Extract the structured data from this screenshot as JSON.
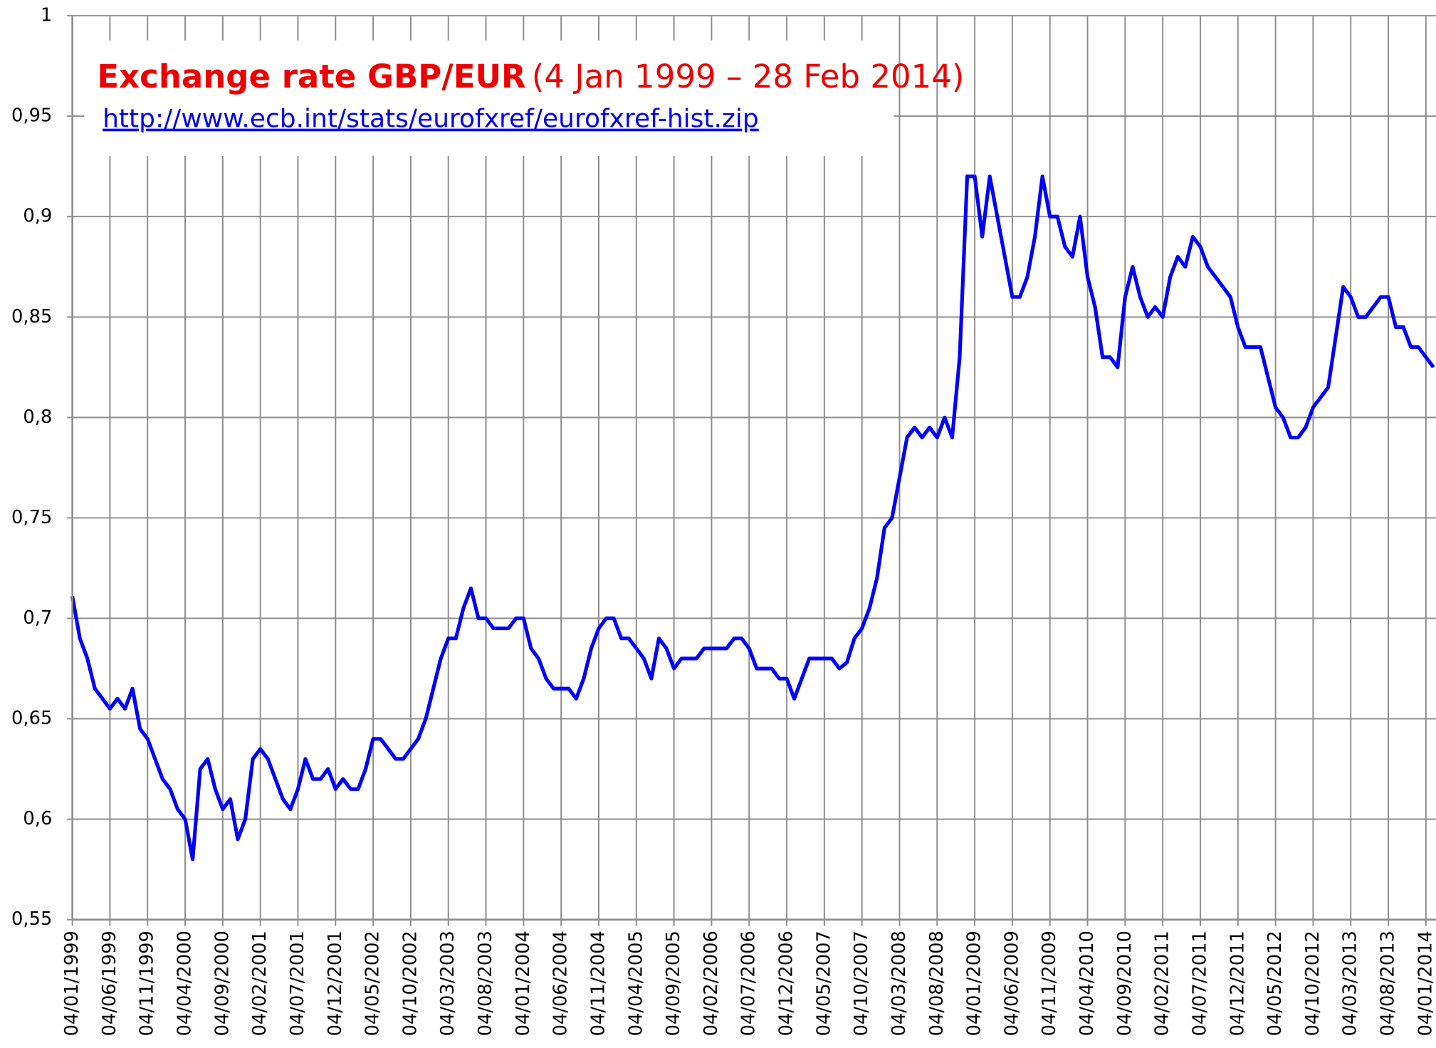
{
  "chart_data": {
    "type": "line",
    "title": "Exchange rate GBP/EUR",
    "subtitle": "(4 Jan 1999 – 28 Feb 2014)",
    "source": "http://www.ecb.int/stats/eurofxref/eurofxref-hist.zip",
    "categories": [
      "04/01/1999",
      null,
      null,
      null,
      null,
      "04/06/1999",
      null,
      null,
      null,
      null,
      "04/11/1999",
      null,
      null,
      null,
      null,
      "04/04/2000",
      null,
      null,
      null,
      null,
      "04/09/2000",
      null,
      null,
      null,
      null,
      "04/02/2001",
      null,
      null,
      null,
      null,
      "04/07/2001",
      null,
      null,
      null,
      null,
      "04/12/2001",
      null,
      null,
      null,
      null,
      "04/05/2002",
      null,
      null,
      null,
      null,
      "04/10/2002",
      null,
      null,
      null,
      null,
      "04/03/2003",
      null,
      null,
      null,
      null,
      "04/08/2003",
      null,
      null,
      null,
      null,
      "04/01/2004",
      null,
      null,
      null,
      null,
      "04/06/2004",
      null,
      null,
      null,
      null,
      "04/11/2004",
      null,
      null,
      null,
      null,
      "04/04/2005",
      null,
      null,
      null,
      null,
      "04/09/2005",
      null,
      null,
      null,
      null,
      "04/02/2006",
      null,
      null,
      null,
      null,
      "04/07/2006",
      null,
      null,
      null,
      null,
      "04/12/2006",
      null,
      null,
      null,
      null,
      "04/05/2007",
      null,
      null,
      null,
      null,
      "04/10/2007",
      null,
      null,
      null,
      null,
      "04/03/2008",
      null,
      null,
      null,
      null,
      "04/08/2008",
      null,
      null,
      null,
      null,
      "04/01/2009",
      null,
      null,
      null,
      null,
      "04/06/2009",
      null,
      null,
      null,
      null,
      "04/11/2009",
      null,
      null,
      null,
      null,
      "04/04/2010",
      null,
      null,
      null,
      null,
      "04/09/2010",
      null,
      null,
      null,
      null,
      "04/02/2011",
      null,
      null,
      null,
      null,
      "04/07/2011",
      null,
      null,
      null,
      null,
      "04/12/2011",
      null,
      null,
      null,
      null,
      "04/05/2012",
      null,
      null,
      null,
      null,
      "04/10/2012",
      null,
      null,
      null,
      null,
      "04/03/2013",
      null,
      null,
      null,
      null,
      "04/08/2013",
      null,
      null,
      null,
      null,
      "04/01/2014",
      null
    ],
    "series": [
      {
        "name": "GBP/EUR",
        "color": "#0000ff",
        "values": [
          0.711,
          0.69,
          0.68,
          0.665,
          0.66,
          0.655,
          0.66,
          0.655,
          0.665,
          0.645,
          0.64,
          0.63,
          0.62,
          0.615,
          0.605,
          0.6,
          0.58,
          0.625,
          0.63,
          0.615,
          0.605,
          0.61,
          0.59,
          0.6,
          0.63,
          0.635,
          0.63,
          0.62,
          0.61,
          0.605,
          0.615,
          0.63,
          0.62,
          0.62,
          0.625,
          0.615,
          0.62,
          0.615,
          0.615,
          0.625,
          0.64,
          0.64,
          0.635,
          0.63,
          0.63,
          0.635,
          0.64,
          0.65,
          0.665,
          0.68,
          0.69,
          0.69,
          0.705,
          0.715,
          0.7,
          0.7,
          0.695,
          0.695,
          0.695,
          0.7,
          0.7,
          0.685,
          0.68,
          0.67,
          0.665,
          0.665,
          0.665,
          0.66,
          0.67,
          0.685,
          0.695,
          0.7,
          0.7,
          0.69,
          0.69,
          0.685,
          0.68,
          0.67,
          0.69,
          0.685,
          0.675,
          0.68,
          0.68,
          0.68,
          0.685,
          0.685,
          0.685,
          0.685,
          0.69,
          0.69,
          0.685,
          0.675,
          0.675,
          0.675,
          0.67,
          0.67,
          0.66,
          0.67,
          0.68,
          0.68,
          0.68,
          0.68,
          0.675,
          0.678,
          0.69,
          0.695,
          0.705,
          0.72,
          0.745,
          0.75,
          0.77,
          0.79,
          0.795,
          0.79,
          0.795,
          0.79,
          0.8,
          0.79,
          0.83,
          0.92,
          0.92,
          0.89,
          0.92,
          0.9,
          0.88,
          0.86,
          0.86,
          0.87,
          0.89,
          0.92,
          0.9,
          0.9,
          0.885,
          0.88,
          0.9,
          0.87,
          0.855,
          0.83,
          0.83,
          0.825,
          0.86,
          0.875,
          0.86,
          0.85,
          0.855,
          0.85,
          0.87,
          0.88,
          0.875,
          0.89,
          0.885,
          0.875,
          0.87,
          0.865,
          0.86,
          0.845,
          0.835,
          0.835,
          0.835,
          0.82,
          0.805,
          0.8,
          0.79,
          0.79,
          0.795,
          0.805,
          0.81,
          0.815,
          0.84,
          0.865,
          0.86,
          0.85,
          0.85,
          0.855,
          0.86,
          0.86,
          0.845,
          0.845,
          0.835,
          0.835,
          0.83,
          0.825
        ]
      }
    ],
    "ylim": [
      0.55,
      1
    ],
    "yticks": [
      {
        "value": 0.55,
        "label": "0,55"
      },
      {
        "value": 0.6,
        "label": "0,6"
      },
      {
        "value": 0.65,
        "label": "0,65"
      },
      {
        "value": 0.7,
        "label": "0,7"
      },
      {
        "value": 0.75,
        "label": "0,75"
      },
      {
        "value": 0.8,
        "label": "0,8"
      },
      {
        "value": 0.85,
        "label": "0,85"
      },
      {
        "value": 0.9,
        "label": "0,9"
      },
      {
        "value": 0.95,
        "label": "0,95"
      },
      1
    ],
    "grid": true
  }
}
